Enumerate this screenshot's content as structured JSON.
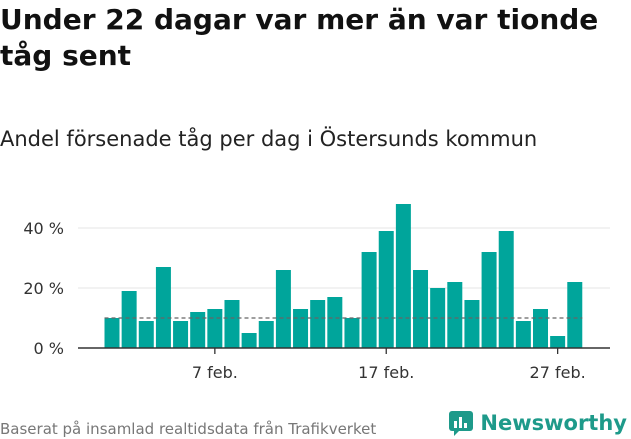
{
  "title": "Under 22 dagar var mer än var tionde tåg sent",
  "subtitle": "Andel försenade tåg per dag i Östersunds kommun",
  "source": "Baserat på insamlad realtidsdata från Trafikverket",
  "brand": {
    "name": "Newsworthy",
    "icon": "newsworthy-logo-icon",
    "color": "#1e9a8a"
  },
  "colors": {
    "bar": "#00a59b",
    "reference_line": "#666666",
    "grid": "#e6e6e6"
  },
  "chart_data": {
    "type": "bar",
    "title": "Andel försenade tåg per dag i Östersunds kommun",
    "xlabel": "",
    "ylabel": "",
    "x": [
      "2022-02-01",
      "2022-02-02",
      "2022-02-03",
      "2022-02-04",
      "2022-02-05",
      "2022-02-06",
      "2022-02-07",
      "2022-02-08",
      "2022-02-09",
      "2022-02-10",
      "2022-02-11",
      "2022-02-12",
      "2022-02-13",
      "2022-02-14",
      "2022-02-15",
      "2022-02-16",
      "2022-02-17",
      "2022-02-18",
      "2022-02-19",
      "2022-02-20",
      "2022-02-21",
      "2022-02-22",
      "2022-02-23",
      "2022-02-24",
      "2022-02-25",
      "2022-02-26",
      "2022-02-27",
      "2022-02-28"
    ],
    "values": [
      10,
      19,
      9,
      27,
      9,
      12,
      13,
      16,
      5,
      9,
      26,
      13,
      16,
      17,
      10,
      32,
      39,
      48,
      26,
      20,
      22,
      16,
      32,
      39,
      9,
      13,
      4,
      22
    ],
    "ylim": [
      0,
      50
    ],
    "yticks": [
      0,
      20,
      40
    ],
    "ytick_labels": [
      "0 %",
      "20 %",
      "40 %"
    ],
    "xticks": [
      {
        "index": 6,
        "label": "7 feb."
      },
      {
        "index": 16,
        "label": "17 feb."
      },
      {
        "index": 26,
        "label": "27 feb."
      }
    ],
    "reference_line": {
      "value": 10,
      "style": "dashed"
    },
    "grid": true
  }
}
